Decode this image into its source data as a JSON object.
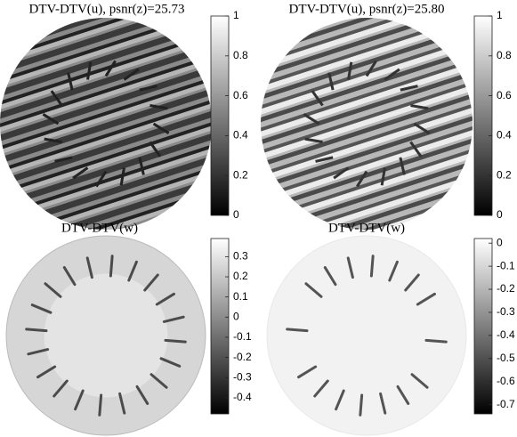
{
  "chart_data": [
    {
      "type": "image",
      "title": "DTV-DTV(u), psnr(z)=25.73",
      "clim": [
        0,
        1
      ],
      "colorbar_ticks": [
        0,
        0.2,
        0.4,
        0.6,
        0.8,
        1
      ],
      "colormap": "gray"
    },
    {
      "type": "image",
      "title": "DTV-DTV(u), psnr(z)=25.80",
      "clim": [
        0,
        1
      ],
      "colorbar_ticks": [
        0,
        0.2,
        0.4,
        0.6,
        0.8,
        1
      ],
      "colormap": "gray"
    },
    {
      "type": "image",
      "title": "DTV-DTV(w)",
      "clim": [
        -0.48,
        0.39
      ],
      "colorbar_ticks": [
        -0.4,
        -0.3,
        -0.2,
        -0.1,
        0,
        0.1,
        0.2,
        0.3
      ],
      "colormap": "gray"
    },
    {
      "type": "image",
      "title": "DTV-DTV(w)",
      "clim": [
        -0.74,
        0.02
      ],
      "colorbar_ticks": [
        -0.7,
        -0.6,
        -0.5,
        -0.4,
        -0.3,
        -0.2,
        -0.1,
        0
      ],
      "colormap": "gray"
    }
  ]
}
